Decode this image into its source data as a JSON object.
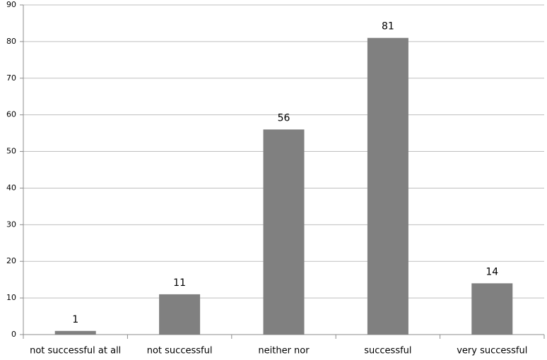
{
  "chart_data": {
    "type": "bar",
    "categories": [
      "not successful at all",
      "not successful",
      "neither nor",
      "successful",
      "very successful"
    ],
    "values": [
      1,
      11,
      56,
      81,
      14
    ],
    "color": "#808080",
    "ylim": [
      0,
      90
    ],
    "yticks": [
      0,
      10,
      20,
      30,
      40,
      50,
      60,
      70,
      80,
      90
    ],
    "grid": true
  }
}
